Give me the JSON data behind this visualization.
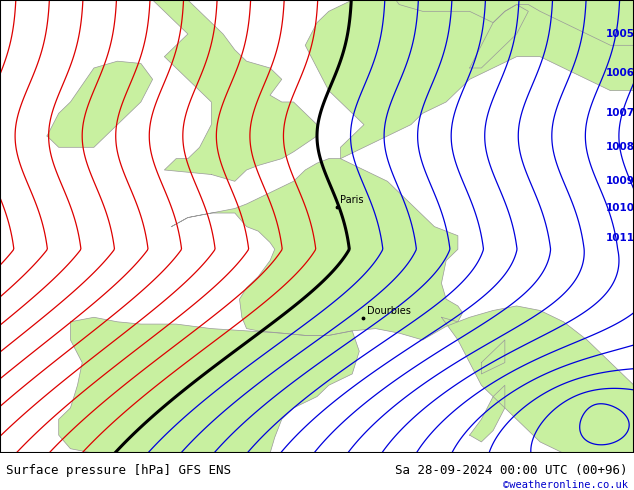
{
  "title_left": "Surface pressure [hPa] GFS ENS",
  "title_right": "Sa 28-09-2024 00:00 UTC (00+96)",
  "watermark": "©weatheronline.co.uk",
  "background_land": "#c8f0a0",
  "background_sea": "#c8c8c8",
  "contour_blue_color": "#0000dd",
  "contour_red_color": "#dd0000",
  "contour_black_color": "#000000",
  "coastline_color": "#999999",
  "label_fontsize": 7.5,
  "title_fontsize": 9,
  "watermark_color": "#0000cc",
  "city_Paris": [
    2.35,
    48.85
  ],
  "city_Dourbies": [
    3.47,
    43.97
  ],
  "lon_min": -12.0,
  "lon_max": 15.0,
  "lat_min": 38.0,
  "lat_max": 58.0,
  "blue_label_levels": [
    1005,
    1006,
    1007,
    1008,
    1009,
    1010,
    1011
  ],
  "blue_label_lons": [
    13.5,
    13.5,
    13.5,
    13.5,
    13.5,
    13.5,
    13.5
  ],
  "blue_label_lats": [
    56.5,
    54.5,
    52.5,
    50.5,
    48.8,
    47.5,
    46.2
  ]
}
